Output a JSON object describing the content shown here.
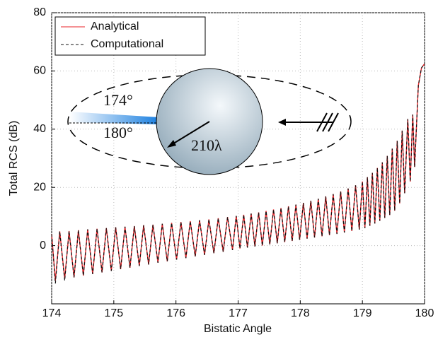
{
  "chart_data": {
    "type": "line",
    "x_label": "Bistatic Angle",
    "y_label": "Total RCS (dB)",
    "xlim": [
      174,
      180
    ],
    "xticks": [
      174,
      175,
      176,
      177,
      178,
      179,
      180
    ],
    "ylim": [
      -20,
      80
    ],
    "yticks": [
      0,
      20,
      40,
      60,
      80
    ],
    "grid": true,
    "legend": "upper left",
    "annotations": [
      "174°",
      "180°",
      "210λ"
    ],
    "x": [
      174.0,
      174.06,
      174.13,
      174.21,
      174.28,
      174.36,
      174.43,
      174.51,
      174.58,
      174.66,
      174.73,
      174.81,
      174.88,
      174.96,
      175.03,
      175.11,
      175.18,
      175.26,
      175.33,
      175.41,
      175.48,
      175.56,
      175.63,
      175.71,
      175.78,
      175.86,
      175.93,
      176.01,
      176.08,
      176.16,
      176.23,
      176.31,
      176.38,
      176.46,
      176.53,
      176.61,
      176.68,
      176.76,
      176.83,
      176.91,
      176.97,
      177.03,
      177.09,
      177.15,
      177.21,
      177.27,
      177.33,
      177.39,
      177.45,
      177.51,
      177.57,
      177.63,
      177.69,
      177.75,
      177.81,
      177.87,
      177.93,
      177.99,
      178.05,
      178.11,
      178.17,
      178.23,
      178.29,
      178.35,
      178.41,
      178.47,
      178.53,
      178.59,
      178.65,
      178.71,
      178.77,
      178.83,
      178.89,
      178.95,
      179.0,
      179.04,
      179.08,
      179.12,
      179.16,
      179.2,
      179.24,
      179.28,
      179.32,
      179.36,
      179.4,
      179.44,
      179.48,
      179.52,
      179.56,
      179.6,
      179.64,
      179.68,
      179.73,
      179.77,
      179.81,
      179.84,
      179.9,
      179.95,
      180.0
    ],
    "series": [
      {
        "name": "Analytical",
        "color": "#e8262b",
        "dash": false,
        "values": [
          4.0,
          -12.0,
          4.9,
          -11.4,
          5.0,
          -10.9,
          5.3,
          -10.3,
          5.6,
          -9.8,
          5.8,
          -9.2,
          6.0,
          -8.7,
          6.3,
          -8.1,
          6.5,
          -7.6,
          6.7,
          -7.0,
          7.0,
          -6.5,
          7.2,
          -5.9,
          7.5,
          -5.4,
          7.8,
          -4.8,
          8.1,
          -4.3,
          8.4,
          -3.7,
          8.7,
          -3.2,
          9.0,
          -2.6,
          9.4,
          -2.1,
          9.8,
          -1.5,
          10.2,
          -1.0,
          10.6,
          -0.7,
          11.0,
          -0.3,
          11.4,
          0.0,
          11.9,
          0.4,
          12.4,
          0.8,
          12.9,
          1.2,
          13.5,
          1.6,
          14.1,
          2.0,
          14.7,
          2.4,
          15.4,
          2.8,
          16.1,
          3.2,
          16.9,
          3.6,
          17.7,
          4.0,
          18.6,
          4.5,
          19.6,
          5.0,
          20.7,
          5.5,
          22.0,
          6.0,
          23.5,
          6.8,
          25.0,
          7.6,
          26.7,
          8.5,
          28.6,
          9.5,
          30.8,
          10.5,
          33.3,
          12.0,
          36.0,
          14.5,
          39.5,
          18.0,
          43.5,
          22.0,
          45.0,
          27.0,
          55.0,
          61.0,
          62.5
        ]
      },
      {
        "name": "Computational",
        "color": "#111111",
        "dash": true,
        "values": [
          4.0,
          -13.0,
          4.9,
          -12.0,
          5.0,
          -10.9,
          5.3,
          -10.3,
          5.6,
          -9.8,
          5.8,
          -9.2,
          6.0,
          -8.7,
          6.3,
          -8.1,
          6.5,
          -7.6,
          6.7,
          -7.0,
          7.0,
          -6.5,
          7.2,
          -5.9,
          7.5,
          -5.4,
          7.8,
          -4.8,
          8.1,
          -4.3,
          8.4,
          -3.7,
          8.7,
          -3.2,
          9.0,
          -2.6,
          9.4,
          -2.1,
          9.8,
          -1.5,
          10.2,
          -1.0,
          10.6,
          -0.7,
          11.0,
          -0.3,
          11.4,
          0.0,
          11.9,
          0.4,
          12.4,
          0.8,
          12.9,
          1.2,
          13.5,
          1.6,
          14.1,
          2.0,
          14.7,
          2.4,
          15.4,
          2.8,
          16.1,
          3.2,
          16.9,
          3.6,
          17.7,
          4.0,
          18.6,
          4.5,
          19.6,
          5.0,
          20.7,
          5.5,
          22.0,
          6.0,
          23.5,
          6.8,
          25.0,
          7.6,
          26.7,
          8.5,
          28.6,
          9.5,
          30.8,
          10.5,
          33.3,
          12.0,
          36.0,
          14.5,
          39.5,
          18.0,
          43.5,
          22.0,
          45.0,
          27.0,
          55.0,
          61.0,
          62.5
        ]
      }
    ]
  }
}
